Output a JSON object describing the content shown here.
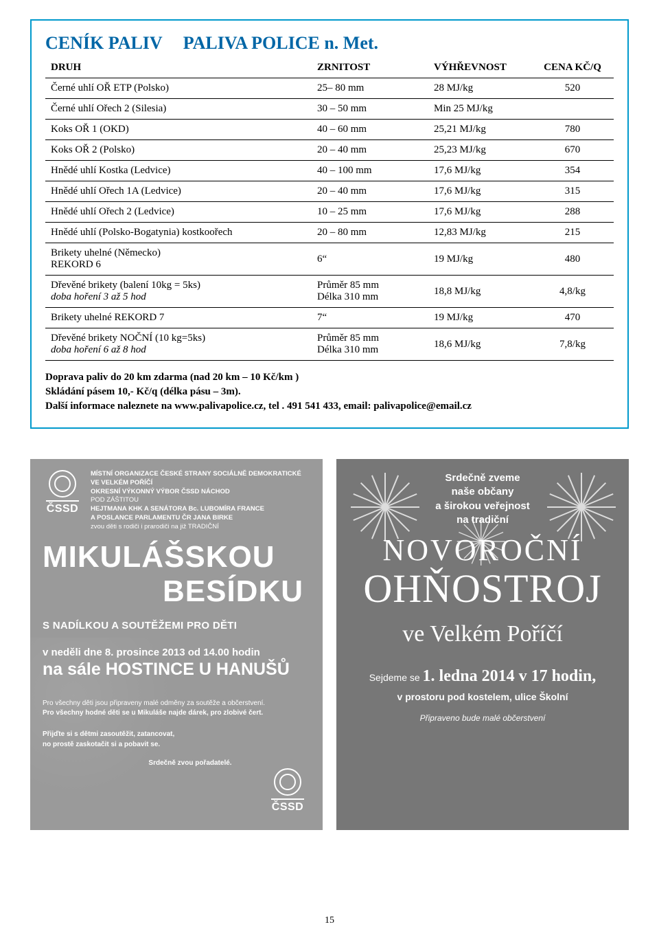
{
  "page_number": "15",
  "price_table": {
    "title": "CENÍK PALIV",
    "company": "PALIVA POLICE n. Met.",
    "border_color": "#0099cc",
    "title_color": "#0066a6",
    "columns": [
      "DRUH",
      "ZRNITOST",
      "VÝHŘEVNOST",
      "CENA KČ/Q"
    ],
    "rows": [
      {
        "druh": "Černé uhlí OŘ  ETP  (Polsko)",
        "zrn": "25– 80 mm",
        "vyh": "28  MJ/kg",
        "cena": "520"
      },
      {
        "druh": "Černé uhlí Ořech 2 (Silesia)",
        "zrn": "30 – 50 mm",
        "vyh": "Min 25 MJ/kg",
        "cena": ""
      },
      {
        "druh": "Koks OŘ 1 (OKD)",
        "zrn": "40 – 60 mm",
        "vyh": "25,21 MJ/kg",
        "cena": "780"
      },
      {
        "druh": "Koks OŘ 2 (Polsko)",
        "zrn": "20 – 40 mm",
        "vyh": "25,23 MJ/kg",
        "cena": "670"
      },
      {
        "druh": "Hnědé uhlí Kostka (Ledvice)",
        "zrn": "40 – 100 mm",
        "vyh": "17,6 MJ/kg",
        "cena": "354"
      },
      {
        "druh": "Hnědé uhlí Ořech 1A (Ledvice)",
        "zrn": "20 – 40 mm",
        "vyh": "17,6 MJ/kg",
        "cena": "315"
      },
      {
        "druh": "Hnědé uhlí Ořech 2 (Ledvice)",
        "zrn": "10 – 25 mm",
        "vyh": "17,6 MJ/kg",
        "cena": "288"
      },
      {
        "druh": "Hnědé uhlí (Polsko-Bogatynia) kostkoořech",
        "zrn": "20 – 80 mm",
        "vyh": "12,83 MJ/kg",
        "cena": "215"
      },
      {
        "druh": "Brikety uhelné (Německo)",
        "druh2": "REKORD 6",
        "zrn": "6“",
        "vyh": "19 MJ/kg",
        "cena": "480"
      },
      {
        "druh": "Dřevěné brikety (balení 10kg = 5ks)",
        "druh2_i": "doba hoření 3 až 5 hod",
        "zrn": "Průměr 85 mm",
        "zrn2": "Délka 310 mm",
        "vyh": "18,8 MJ/kg",
        "cena": "4,8/kg"
      },
      {
        "druh": "Brikety uhelné REKORD 7",
        "zrn": "7“",
        "vyh": "19 MJ/kg",
        "cena": "470"
      },
      {
        "druh": "Dřevěné brikety NOČNÍ (10 kg=5ks)",
        "druh2_i": "doba hoření 6 až 8 hod",
        "zrn": "Průměr 85 mm",
        "zrn2": "Délka 310 mm",
        "vyh": "18,6 MJ/kg",
        "cena": "7,8/kg"
      }
    ],
    "notes": [
      "Doprava paliv do 20 km zdarma (nad 20 km – 10 Kč/km )",
      "Skládání pásem 10,- Kč/q (délka pásu – 3m).",
      "Další informace naleznete na www.palivapolice.cz, tel . 491 541 433, email: palivapolice@email.cz"
    ]
  },
  "ad_left": {
    "background": "#9a9a9a",
    "logo_text": "ČSSD",
    "org_lines": [
      "MÍSTNÍ ORGANIZACE ČESKÉ STRANY SOCIÁLNĚ DEMOKRATICKÉ",
      "VE VELKÉM POŘÍČÍ",
      "OKRESNÍ VÝKONNÝ VÝBOR ČSSD NÁCHOD",
      "POD ZÁŠTITOU",
      "HEJTMANA KHK A SENÁTORA   Bc. LUBOMÍRA FRANCE",
      "A POSLANCE PARLAMENTU ČR   JANA BIRKE",
      "zvou děti s rodiči i prarodiči na již TRADIČNÍ"
    ],
    "title1": "MIKULÁŠSKOU",
    "title2": "BESÍDKU",
    "sub1": "S NADÍLKOU A SOUTĚŽEMI PRO DĚTI",
    "dateline": "v neděli dne 8. prosince 2013 od 14.00 hodin",
    "venue": "na sále HOSTINCE U HANUŠŮ",
    "small1": "Pro všechny děti jsou připraveny malé odměny za soutěže a občerstvení.",
    "small2": "Pro všechny hodné děti se u Mikuláše najde dárek, pro zlobivé čert.",
    "closing1": "Přijďte si s dětmi zasoutěžit, zatancovat,",
    "closing2": "no prostě zaskotačit si a pobavit se.",
    "signoff": "Srdečně zvou pořadatelé."
  },
  "ad_right": {
    "background": "#777777",
    "invite": [
      "Srdečně zveme",
      "naše občany",
      "a širokou veřejnost",
      "na tradiční"
    ],
    "ny": "NOVOROČNÍ",
    "fw_title": "OHŇOSTROJ",
    "place": "ve Velkém Poříčí",
    "meet_pre": "Sejdeme se ",
    "meet_big": "1. ledna 2014 v 17 hodin,",
    "sub2": "v prostoru pod kostelem, ulice Školní",
    "foot": "Připraveno bude malé občerstvení"
  }
}
